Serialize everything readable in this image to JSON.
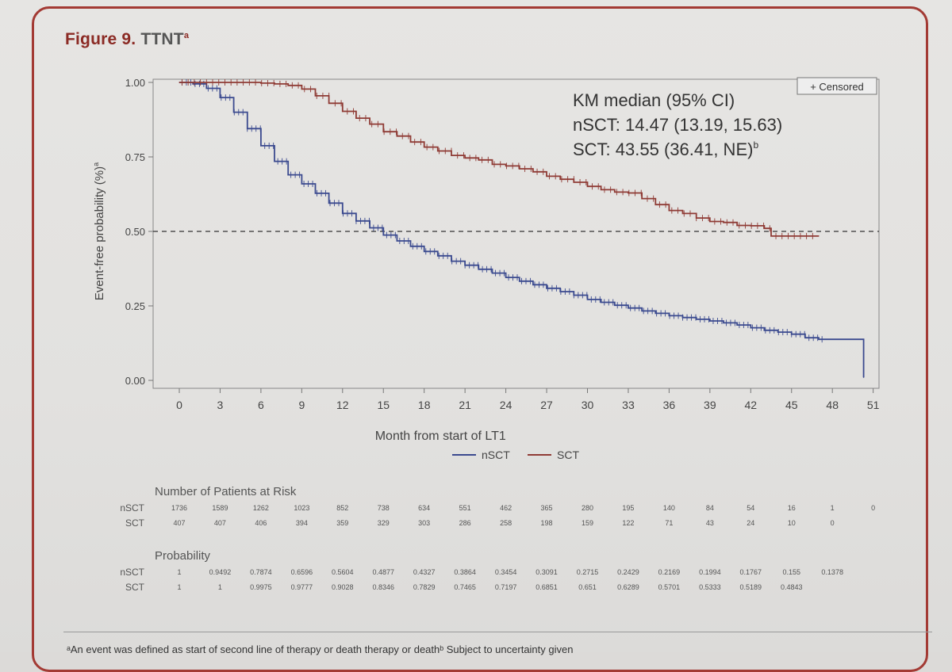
{
  "figure": {
    "label": "Figure 9.",
    "name": "TTNT",
    "sup": "a"
  },
  "footnote": "ᵃAn event was defined as start of second line of therapy or death therapy or deathᵇ Subject to uncertainty given",
  "chart_data": {
    "type": "line",
    "title": "",
    "xlabel": "Month from start of LT1",
    "ylabel": "Event-free probability (%)",
    "ylabel_sup": "a",
    "xlim": [
      -1.5,
      52
    ],
    "ylim": [
      0,
      1
    ],
    "xticks": [
      0,
      3,
      6,
      9,
      12,
      15,
      18,
      21,
      24,
      27,
      30,
      33,
      36,
      39,
      42,
      45,
      48,
      51
    ],
    "yticks": [
      0.0,
      0.25,
      0.5,
      0.75,
      1.0
    ],
    "ytick_labels": [
      "0.00",
      "0.25",
      "0.50",
      "0.75",
      "1.00"
    ],
    "reference_line": 0.5,
    "legend_position": "bottom",
    "censored_label": "+ Censored",
    "annotation": {
      "line1": "KM median (95% CI)",
      "line2": "nSCT: 14.47 (13.19, 15.63)",
      "line3": "SCT: 43.55 (36.41, NE)",
      "line3_sup": "b"
    },
    "series": [
      {
        "name": "nSCT",
        "color": "#3b4a8f",
        "x": [
          0,
          0.5,
          1,
          2,
          3,
          4,
          5,
          6,
          7,
          8,
          9,
          10,
          11,
          12,
          13,
          14,
          15,
          16,
          17,
          18,
          19,
          20,
          21,
          22,
          23,
          24,
          25,
          26,
          27,
          28,
          29,
          30,
          31,
          32,
          33,
          34,
          35,
          36,
          37,
          38,
          39,
          40,
          41,
          42,
          43,
          44,
          45,
          46,
          47,
          48,
          49,
          50.3,
          50.3
        ],
        "y": [
          1.0,
          1.0,
          0.995,
          0.98,
          0.9492,
          0.9,
          0.845,
          0.7874,
          0.735,
          0.69,
          0.6596,
          0.628,
          0.595,
          0.5604,
          0.535,
          0.512,
          0.4877,
          0.468,
          0.45,
          0.4327,
          0.418,
          0.4,
          0.3864,
          0.373,
          0.36,
          0.3454,
          0.333,
          0.321,
          0.3091,
          0.298,
          0.286,
          0.2715,
          0.262,
          0.252,
          0.2429,
          0.233,
          0.225,
          0.2169,
          0.211,
          0.205,
          0.1994,
          0.193,
          0.186,
          0.1767,
          0.168,
          0.162,
          0.155,
          0.143,
          0.1378,
          0.1378,
          0.1378,
          0.1378,
          0.01
        ]
      },
      {
        "name": "SCT",
        "color": "#8f3b35",
        "x": [
          0,
          3,
          6,
          7,
          8,
          9,
          10,
          11,
          12,
          13,
          14,
          15,
          16,
          17,
          18,
          19,
          20,
          21,
          22,
          23,
          24,
          25,
          26,
          27,
          28,
          29,
          30,
          31,
          32,
          33,
          34,
          35,
          36,
          37,
          38,
          39,
          40,
          41,
          42,
          43,
          43.5,
          44,
          45,
          46,
          47
        ],
        "y": [
          1.0,
          1.0,
          0.9975,
          0.995,
          0.99,
          0.9777,
          0.955,
          0.93,
          0.9028,
          0.88,
          0.86,
          0.8346,
          0.82,
          0.8,
          0.7829,
          0.77,
          0.755,
          0.7465,
          0.74,
          0.725,
          0.7197,
          0.71,
          0.7,
          0.6851,
          0.675,
          0.665,
          0.651,
          0.64,
          0.632,
          0.6289,
          0.61,
          0.59,
          0.5701,
          0.56,
          0.545,
          0.5333,
          0.53,
          0.52,
          0.5189,
          0.51,
          0.4843,
          0.4843,
          0.4843,
          0.4843,
          0.4843
        ]
      }
    ],
    "at_risk": {
      "heading": "Number of Patients at Risk",
      "rows": [
        {
          "name": "nSCT",
          "values": [
            "1736",
            "1589",
            "1262",
            "1023",
            "852",
            "738",
            "634",
            "551",
            "462",
            "365",
            "280",
            "195",
            "140",
            "84",
            "54",
            "16",
            "1",
            "0"
          ]
        },
        {
          "name": "SCT",
          "values": [
            "407",
            "407",
            "406",
            "394",
            "359",
            "329",
            "303",
            "286",
            "258",
            "198",
            "159",
            "122",
            "71",
            "43",
            "24",
            "10",
            "0",
            ""
          ]
        }
      ]
    },
    "probability_table": {
      "heading": "Probability",
      "rows": [
        {
          "name": "nSCT",
          "values": [
            "1",
            "0.9492",
            "0.7874",
            "0.6596",
            "0.5604",
            "0.4877",
            "0.4327",
            "0.3864",
            "0.3454",
            "0.3091",
            "0.2715",
            "0.2429",
            "0.2169",
            "0.1994",
            "0.1767",
            "0.155",
            "0.1378",
            ""
          ]
        },
        {
          "name": "SCT",
          "values": [
            "1",
            "1",
            "0.9975",
            "0.9777",
            "0.9028",
            "0.8346",
            "0.7829",
            "0.7465",
            "0.7197",
            "0.6851",
            "0.651",
            "0.6289",
            "0.5701",
            "0.5333",
            "0.5189",
            "0.4843",
            "",
            ""
          ]
        }
      ]
    }
  }
}
